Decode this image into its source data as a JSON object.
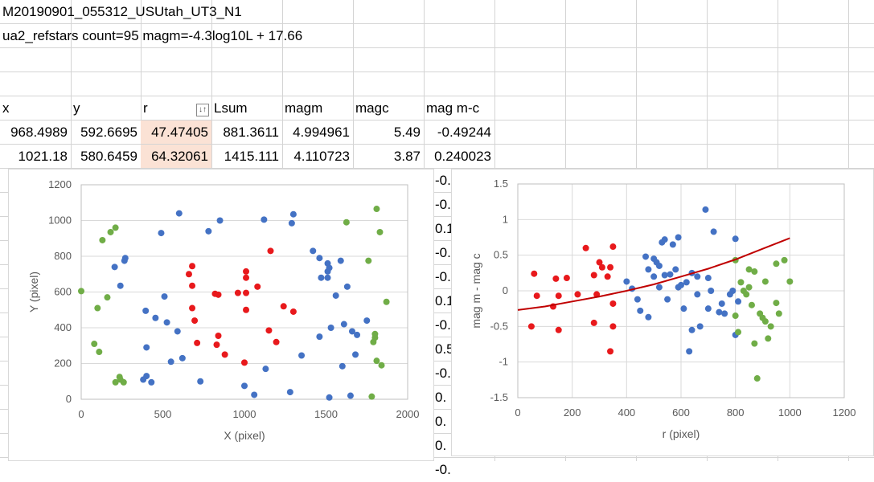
{
  "sheet": {
    "title_cell": "M20190901_055312_USUtah_UT3_N1",
    "subtitle_cell": "ua2_refstars count=95 magm=-4.3log10L + 17.66",
    "headers": [
      "x",
      "y",
      "r",
      "Lsum",
      "magm",
      "magc",
      "mag m-c"
    ],
    "rows": [
      [
        "968.4989",
        "592.6695",
        "47.47405",
        "881.3611",
        "4.994961",
        "5.49",
        "-0.49244"
      ],
      [
        "1021.18",
        "580.6459",
        "64.32061",
        "1415.111",
        "4.110723",
        "3.87",
        "0.240023"
      ]
    ],
    "partial_column": [
      "-0.",
      "-0.",
      "0.1",
      "-0.",
      "-0.",
      "0.1",
      "-0.",
      "0.5",
      "-0.",
      "0.",
      "0.",
      "0.",
      "-0."
    ],
    "highlight_color": "#fbe2d5"
  },
  "chart_data": [
    {
      "type": "scatter",
      "title": "",
      "xlabel": "X (pixel)",
      "ylabel": "Y (pixel)",
      "xlim": [
        0,
        2000
      ],
      "ylim": [
        0,
        1200
      ],
      "xticks": [
        "0",
        "500",
        "1000",
        "1500",
        "2000"
      ],
      "yticks": [
        "0",
        "200",
        "400",
        "600",
        "800",
        "1000",
        "1200"
      ],
      "grid": "horizontal",
      "series": [
        {
          "color": "#4472c4",
          "points": [
            [
              600,
              1040
            ],
            [
              490,
              930
            ],
            [
              780,
              940
            ],
            [
              850,
              1000
            ],
            [
              1120,
              1005
            ],
            [
              1290,
              985
            ],
            [
              1300,
              1035
            ],
            [
              395,
              495
            ],
            [
              455,
              455
            ],
            [
              510,
              575
            ],
            [
              525,
              430
            ],
            [
              590,
              380
            ],
            [
              400,
              290
            ],
            [
              380,
              110
            ],
            [
              400,
              130
            ],
            [
              430,
              95
            ],
            [
              550,
              210
            ],
            [
              620,
              230
            ],
            [
              730,
              100
            ],
            [
              1060,
              25
            ],
            [
              1000,
              75
            ],
            [
              1130,
              170
            ],
            [
              1280,
              40
            ],
            [
              1350,
              245
            ],
            [
              1420,
              830
            ],
            [
              1460,
              790
            ],
            [
              1470,
              680
            ],
            [
              1510,
              715
            ],
            [
              1510,
              760
            ],
            [
              1510,
              680
            ],
            [
              1520,
              735
            ],
            [
              1530,
              400
            ],
            [
              1590,
              775
            ],
            [
              1560,
              580
            ],
            [
              1610,
              420
            ],
            [
              1630,
              630
            ],
            [
              1660,
              380
            ],
            [
              1690,
              360
            ],
            [
              1680,
              250
            ],
            [
              1650,
              20
            ],
            [
              1600,
              185
            ],
            [
              1460,
              350
            ],
            [
              1520,
              10
            ],
            [
              1750,
              440
            ],
            [
              265,
              775
            ],
            [
              270,
              790
            ],
            [
              240,
              635
            ],
            [
              205,
              740
            ]
          ]
        },
        {
          "color": "#e8191c",
          "points": [
            [
              680,
              745
            ],
            [
              680,
              635
            ],
            [
              660,
              700
            ],
            [
              680,
              510
            ],
            [
              695,
              440
            ],
            [
              710,
              315
            ],
            [
              820,
              590
            ],
            [
              840,
              585
            ],
            [
              840,
              355
            ],
            [
              830,
              305
            ],
            [
              880,
              250
            ],
            [
              960,
              595
            ],
            [
              1010,
              715
            ],
            [
              1010,
              680
            ],
            [
              1010,
              595
            ],
            [
              1010,
              500
            ],
            [
              1000,
              205
            ],
            [
              1080,
              630
            ],
            [
              1150,
              385
            ],
            [
              1160,
              830
            ],
            [
              1195,
              320
            ],
            [
              1240,
              520
            ],
            [
              1300,
              490
            ]
          ]
        },
        {
          "color": "#70ad47",
          "points": [
            [
              0,
              605
            ],
            [
              100,
              510
            ],
            [
              130,
              890
            ],
            [
              160,
              570
            ],
            [
              180,
              935
            ],
            [
              210,
              960
            ],
            [
              210,
              95
            ],
            [
              235,
              125
            ],
            [
              260,
              95
            ],
            [
              240,
              110
            ],
            [
              110,
              265
            ],
            [
              80,
              310
            ],
            [
              1625,
              990
            ],
            [
              1810,
              1065
            ],
            [
              1830,
              935
            ],
            [
              1760,
              775
            ],
            [
              1870,
              545
            ],
            [
              1800,
              345
            ],
            [
              1800,
              365
            ],
            [
              1790,
              320
            ],
            [
              1840,
              190
            ],
            [
              1810,
              215
            ],
            [
              1780,
              15
            ]
          ]
        }
      ]
    },
    {
      "type": "scatter",
      "title": "",
      "xlabel": "r (pixel)",
      "ylabel": "mag m - mag c",
      "xlim": [
        0,
        1200
      ],
      "ylim": [
        -1.5,
        1.5
      ],
      "xticks": [
        "0",
        "200",
        "400",
        "600",
        "800",
        "1000",
        "1200"
      ],
      "yticks": [
        "-1.5",
        "-1",
        "-0.5",
        "0",
        "0.5",
        "1",
        "1.5"
      ],
      "grid": "both",
      "trendline": {
        "color": "#c00000",
        "points": [
          [
            0,
            -0.27
          ],
          [
            100,
            -0.22
          ],
          [
            200,
            -0.15
          ],
          [
            300,
            -0.08
          ],
          [
            400,
            0.0
          ],
          [
            500,
            0.09
          ],
          [
            600,
            0.2
          ],
          [
            700,
            0.31
          ],
          [
            800,
            0.44
          ],
          [
            900,
            0.59
          ],
          [
            1000,
            0.74
          ]
        ]
      },
      "series": [
        {
          "color": "#4472c4",
          "points": [
            [
              400,
              0.13
            ],
            [
              420,
              0.03
            ],
            [
              440,
              -0.12
            ],
            [
              450,
              -0.28
            ],
            [
              470,
              0.48
            ],
            [
              480,
              0.3
            ],
            [
              480,
              -0.37
            ],
            [
              500,
              0.45
            ],
            [
              500,
              0.2
            ],
            [
              510,
              0.4
            ],
            [
              520,
              0.35
            ],
            [
              520,
              0.05
            ],
            [
              530,
              0.68
            ],
            [
              540,
              0.72
            ],
            [
              540,
              0.22
            ],
            [
              550,
              -0.12
            ],
            [
              560,
              0.23
            ],
            [
              570,
              0.65
            ],
            [
              580,
              0.3
            ],
            [
              590,
              0.75
            ],
            [
              590,
              0.05
            ],
            [
              600,
              0.08
            ],
            [
              610,
              -0.25
            ],
            [
              620,
              0.12
            ],
            [
              630,
              -0.85
            ],
            [
              640,
              0.25
            ],
            [
              640,
              -0.55
            ],
            [
              660,
              0.2
            ],
            [
              660,
              -0.05
            ],
            [
              670,
              -0.5
            ],
            [
              690,
              1.14
            ],
            [
              700,
              0.18
            ],
            [
              700,
              -0.25
            ],
            [
              710,
              0.0
            ],
            [
              720,
              0.83
            ],
            [
              740,
              -0.3
            ],
            [
              750,
              -0.18
            ],
            [
              760,
              -0.32
            ],
            [
              780,
              -0.05
            ],
            [
              790,
              0.0
            ],
            [
              800,
              0.73
            ],
            [
              800,
              -0.62
            ],
            [
              810,
              -0.15
            ]
          ]
        },
        {
          "color": "#e8191c",
          "points": [
            [
              50,
              -0.5
            ],
            [
              60,
              0.24
            ],
            [
              70,
              -0.07
            ],
            [
              130,
              -0.22
            ],
            [
              140,
              0.17
            ],
            [
              150,
              -0.07
            ],
            [
              150,
              -0.55
            ],
            [
              180,
              0.18
            ],
            [
              220,
              -0.05
            ],
            [
              250,
              0.6
            ],
            [
              280,
              -0.45
            ],
            [
              280,
              0.22
            ],
            [
              290,
              -0.05
            ],
            [
              300,
              0.4
            ],
            [
              310,
              0.33
            ],
            [
              330,
              0.2
            ],
            [
              340,
              0.33
            ],
            [
              340,
              -0.85
            ],
            [
              350,
              0.62
            ],
            [
              350,
              -0.18
            ],
            [
              350,
              -0.5
            ]
          ]
        },
        {
          "color": "#70ad47",
          "points": [
            [
              800,
              0.43
            ],
            [
              800,
              -0.35
            ],
            [
              810,
              -0.58
            ],
            [
              820,
              0.12
            ],
            [
              830,
              0.0
            ],
            [
              840,
              -0.05
            ],
            [
              850,
              0.05
            ],
            [
              850,
              0.3
            ],
            [
              860,
              -0.2
            ],
            [
              870,
              -0.74
            ],
            [
              870,
              0.27
            ],
            [
              880,
              -1.23
            ],
            [
              890,
              -0.32
            ],
            [
              900,
              -0.38
            ],
            [
              910,
              0.13
            ],
            [
              910,
              -0.43
            ],
            [
              920,
              -0.67
            ],
            [
              930,
              -0.5
            ],
            [
              950,
              0.38
            ],
            [
              950,
              -0.17
            ],
            [
              960,
              -0.32
            ],
            [
              980,
              0.43
            ],
            [
              1000,
              0.13
            ]
          ]
        }
      ]
    }
  ]
}
